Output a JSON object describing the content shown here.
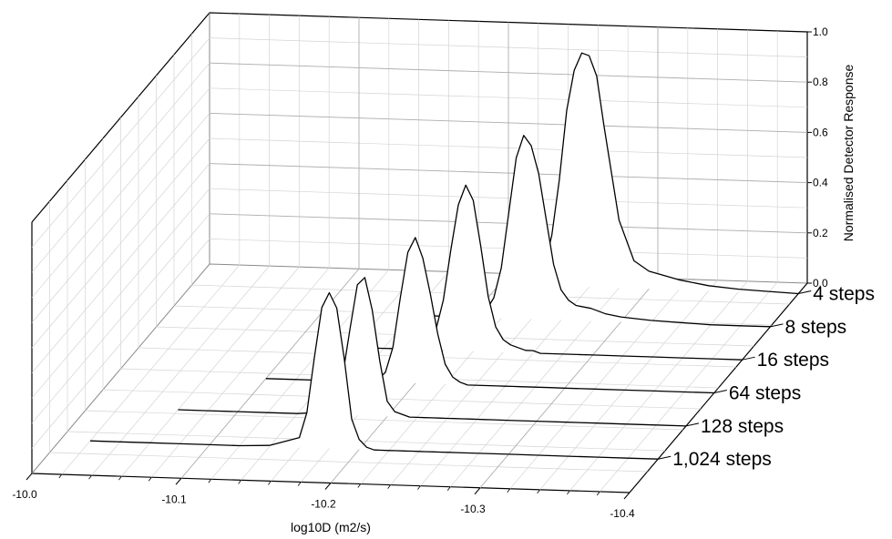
{
  "chart_data": {
    "type": "line",
    "style": "3d waterfall",
    "xlabel": "log10D (m2/s)",
    "ylabel": "Normalised Detector Response",
    "xlim": [
      -10.0,
      -10.4
    ],
    "ylim": [
      0.0,
      1.0
    ],
    "x_ticks": [
      "-10.0",
      "-10.1",
      "-10.2",
      "-10.3",
      "-10.4"
    ],
    "y_ticks": [
      "0.0",
      "0.2",
      "0.4",
      "0.6",
      "0.8",
      "1.0"
    ],
    "grid": true,
    "x": [
      -10.0,
      -10.02,
      -10.04,
      -10.06,
      -10.08,
      -10.1,
      -10.12,
      -10.14,
      -10.16,
      -10.165,
      -10.17,
      -10.175,
      -10.18,
      -10.185,
      -10.19,
      -10.195,
      -10.2,
      -10.205,
      -10.21,
      -10.215,
      -10.22,
      -10.225,
      -10.23,
      -10.235,
      -10.24,
      -10.245,
      -10.25,
      -10.255,
      -10.26,
      -10.265,
      -10.27,
      -10.28,
      -10.29,
      -10.3,
      -10.32,
      -10.34,
      -10.36,
      -10.38,
      -10.4
    ],
    "series": [
      {
        "name": "4 steps",
        "values": [
          0,
          0,
          0,
          0,
          0,
          0,
          0,
          0,
          0,
          0,
          0,
          0,
          0,
          0,
          0,
          0,
          0,
          0,
          0,
          0,
          0.01,
          0.03,
          0.08,
          0.2,
          0.42,
          0.7,
          0.86,
          0.93,
          0.92,
          0.84,
          0.64,
          0.27,
          0.11,
          0.07,
          0.04,
          0.02,
          0.01,
          0.005,
          0
        ]
      },
      {
        "name": "8 steps",
        "values": [
          0,
          0,
          0,
          0,
          0,
          0,
          0,
          0,
          0,
          0,
          0,
          0,
          0,
          0,
          0,
          0,
          0,
          0.01,
          0.03,
          0.08,
          0.2,
          0.42,
          0.64,
          0.73,
          0.69,
          0.58,
          0.4,
          0.22,
          0.12,
          0.08,
          0.06,
          0.05,
          0.03,
          0.02,
          0.01,
          0.005,
          0,
          0,
          0
        ]
      },
      {
        "name": "16 steps",
        "values": [
          0,
          0,
          0,
          0,
          0,
          0,
          0,
          0,
          0,
          0,
          0,
          0,
          0,
          0.01,
          0.03,
          0.08,
          0.2,
          0.4,
          0.58,
          0.66,
          0.6,
          0.42,
          0.22,
          0.1,
          0.05,
          0.03,
          0.02,
          0.01,
          0.01,
          0,
          0,
          0,
          0,
          0,
          0,
          0,
          0,
          0,
          0
        ]
      },
      {
        "name": "64 steps",
        "values": [
          0,
          0,
          0,
          0,
          0,
          0,
          0,
          0,
          0,
          0,
          0,
          0.01,
          0.04,
          0.14,
          0.34,
          0.52,
          0.58,
          0.5,
          0.36,
          0.2,
          0.08,
          0.03,
          0.01,
          0,
          0,
          0,
          0,
          0,
          0,
          0,
          0,
          0,
          0,
          0,
          0,
          0,
          0,
          0,
          0
        ]
      },
      {
        "name": "128 steps",
        "values": [
          0,
          0,
          0,
          0,
          0,
          0,
          0,
          0,
          0.01,
          0.04,
          0.15,
          0.34,
          0.52,
          0.55,
          0.42,
          0.22,
          0.06,
          0.02,
          0.01,
          0,
          0,
          0,
          0,
          0,
          0,
          0,
          0,
          0,
          0,
          0,
          0,
          0,
          0,
          0,
          0,
          0,
          0,
          0,
          0
        ]
      },
      {
        "name": "1,024 steps",
        "values": [
          0,
          0,
          0,
          0,
          0,
          0,
          0,
          0.005,
          0.04,
          0.14,
          0.36,
          0.56,
          0.62,
          0.56,
          0.36,
          0.12,
          0.04,
          0.01,
          0,
          0,
          0,
          0,
          0,
          0,
          0,
          0,
          0,
          0,
          0,
          0,
          0,
          0,
          0,
          0,
          0,
          0,
          0,
          0,
          0
        ]
      }
    ]
  }
}
